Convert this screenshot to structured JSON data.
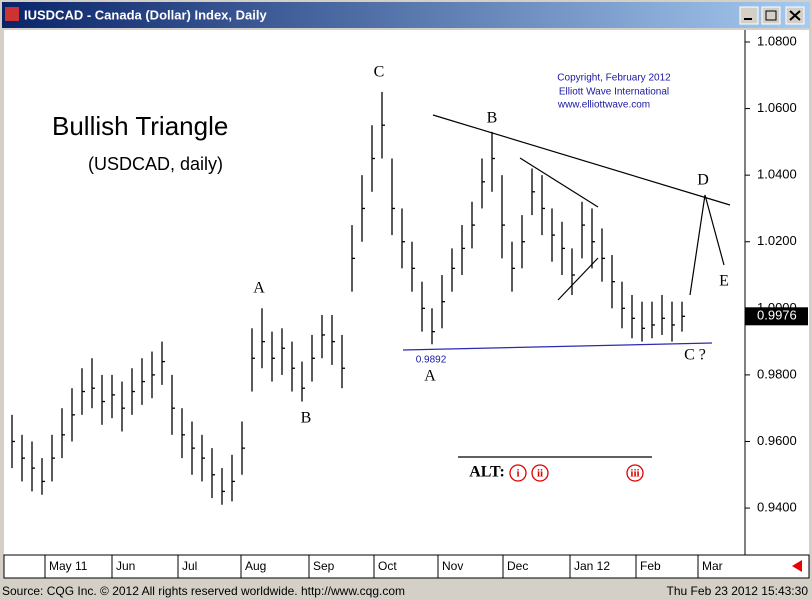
{
  "window": {
    "title": "IUSDCAD - Canada (Dollar) Index, Daily"
  },
  "footer": {
    "source": "Source: CQG Inc. © 2012 All rights reserved worldwide. http://www.cqg.com",
    "timestamp": "Thu Feb 23 2012 15:43:30"
  },
  "chart_data": {
    "type": "ohlc",
    "title": "Bullish Triangle",
    "subtitle": "(USDCAD, daily)",
    "copyright": [
      "Copyright, February 2012",
      "Elliott Wave International",
      "www.elliottwave.com"
    ],
    "annotations": [
      "A",
      "B",
      "C",
      "A",
      "B",
      "C ?",
      "D",
      "E",
      "0.9892"
    ],
    "alt": {
      "label": "ALT:",
      "marks": [
        "i",
        "ii",
        "iii"
      ]
    },
    "color": "#000000",
    "high": [
      0.968,
      0.962,
      0.96,
      0.955,
      0.962,
      0.97,
      0.976,
      0.982,
      0.985,
      0.98,
      0.98,
      0.978,
      0.982,
      0.985,
      0.987,
      0.99,
      0.98,
      0.97,
      0.966,
      0.962,
      0.958,
      0.952,
      0.956,
      0.966,
      0.994,
      1.0,
      0.993,
      0.994,
      0.99,
      0.984,
      0.992,
      0.998,
      0.998,
      0.992,
      1.025,
      1.04,
      1.055,
      1.065,
      1.045,
      1.03,
      1.02,
      1.008,
      1.0,
      1.01,
      1.018,
      1.025,
      1.032,
      1.045,
      1.053,
      1.04,
      1.02,
      1.028,
      1.042,
      1.04,
      1.03,
      1.026,
      1.018,
      1.032,
      1.03,
      1.024,
      1.016,
      1.008,
      1.004,
      1.002,
      1.002,
      1.004,
      1.002,
      1.002
    ],
    "low": [
      0.952,
      0.948,
      0.945,
      0.944,
      0.948,
      0.955,
      0.96,
      0.968,
      0.97,
      0.965,
      0.967,
      0.963,
      0.968,
      0.971,
      0.973,
      0.977,
      0.962,
      0.955,
      0.95,
      0.948,
      0.943,
      0.941,
      0.942,
      0.95,
      0.975,
      0.982,
      0.978,
      0.98,
      0.975,
      0.972,
      0.978,
      0.985,
      0.983,
      0.976,
      1.005,
      1.02,
      1.035,
      1.045,
      1.022,
      1.012,
      1.005,
      0.993,
      0.9892,
      0.994,
      1.005,
      1.01,
      1.018,
      1.03,
      1.035,
      1.015,
      1.005,
      1.012,
      1.028,
      1.022,
      1.014,
      1.01,
      1.004,
      1.015,
      1.012,
      1.008,
      1.0,
      0.994,
      0.991,
      0.99,
      0.991,
      0.992,
      0.99,
      0.993
    ],
    "close": [
      0.96,
      0.955,
      0.952,
      0.948,
      0.955,
      0.962,
      0.968,
      0.975,
      0.976,
      0.972,
      0.974,
      0.97,
      0.975,
      0.978,
      0.98,
      0.984,
      0.97,
      0.962,
      0.958,
      0.955,
      0.95,
      0.945,
      0.948,
      0.958,
      0.985,
      0.99,
      0.985,
      0.988,
      0.982,
      0.976,
      0.985,
      0.992,
      0.99,
      0.982,
      1.015,
      1.03,
      1.045,
      1.055,
      1.03,
      1.02,
      1.012,
      1.0,
      0.993,
      1.002,
      1.012,
      1.018,
      1.025,
      1.038,
      1.045,
      1.025,
      1.012,
      1.02,
      1.035,
      1.03,
      1.022,
      1.018,
      1.01,
      1.025,
      1.02,
      1.015,
      1.008,
      1.0,
      0.997,
      0.994,
      0.995,
      0.997,
      0.995,
      0.9976
    ],
    "ylim": [
      0.9259,
      1.0836
    ],
    "yticks": [
      {
        "value": 1.08,
        "label": "1.0800"
      },
      {
        "value": 1.06,
        "label": "1.0600"
      },
      {
        "value": 1.04,
        "label": "1.0400"
      },
      {
        "value": 1.02,
        "label": "1.0200"
      },
      {
        "value": 1.0,
        "label": "1.0000"
      },
      {
        "value": 0.98,
        "label": "0.9800"
      },
      {
        "value": 0.96,
        "label": "0.9600"
      },
      {
        "value": 0.94,
        "label": "0.9400"
      }
    ],
    "xlim": [
      -0.4,
      73.3
    ],
    "xticks": [
      {
        "value": 3.3,
        "label": "May 11"
      },
      {
        "value": 10,
        "label": "Jun"
      },
      {
        "value": 16.6,
        "label": "Jul"
      },
      {
        "value": 22.9,
        "label": "Aug"
      },
      {
        "value": 29.7,
        "label": "Sep"
      },
      {
        "value": 36.2,
        "label": "Oct"
      },
      {
        "value": 42.6,
        "label": "Nov"
      },
      {
        "value": 49.1,
        "label": "Dec"
      },
      {
        "value": 55.8,
        "label": "Jan 12"
      },
      {
        "value": 62.4,
        "label": "Feb"
      },
      {
        "value": 68.6,
        "label": "Mar"
      }
    ]
  }
}
